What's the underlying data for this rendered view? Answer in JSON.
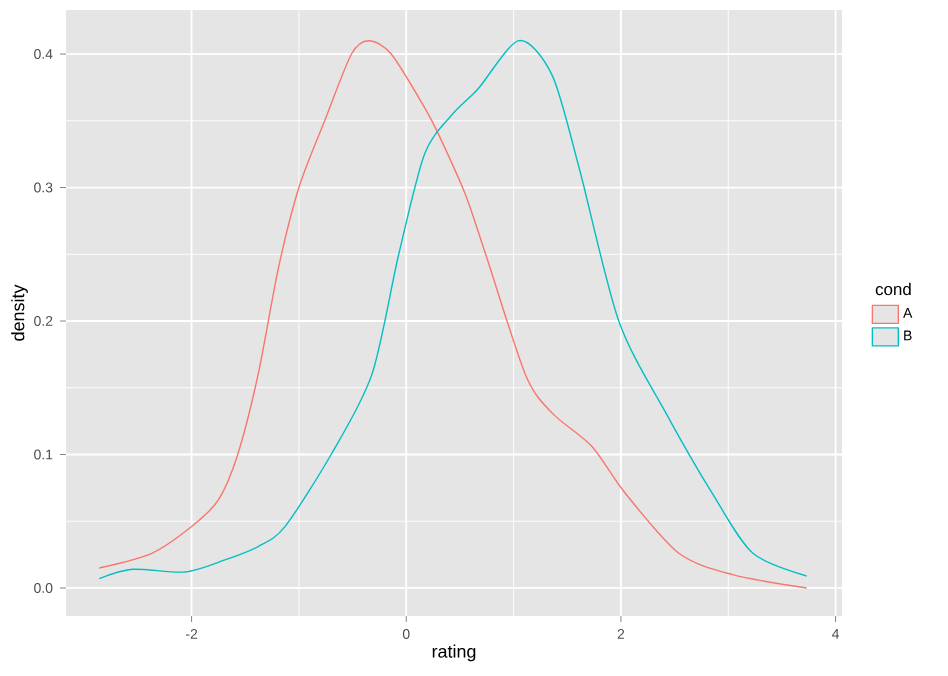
{
  "chart_data": {
    "type": "line",
    "xlabel": "rating",
    "ylabel": "density",
    "legend_title": "cond",
    "series": [
      {
        "name": "A",
        "color": "#f8766d",
        "x": [
          -2.86,
          -2.37,
          -2.0,
          -1.75,
          -1.57,
          -1.38,
          -1.19,
          -1.0,
          -0.76,
          -0.51,
          -0.35,
          -0.14,
          0.17,
          0.3,
          0.55,
          0.74,
          1.11,
          1.36,
          1.73,
          2.04,
          2.54,
          3.04,
          3.73
        ],
        "values": [
          0.015,
          0.026,
          0.046,
          0.066,
          0.1,
          0.16,
          0.24,
          0.3,
          0.35,
          0.4,
          0.41,
          0.4,
          0.36,
          0.34,
          0.295,
          0.25,
          0.16,
          0.131,
          0.106,
          0.071,
          0.026,
          0.01,
          0.0
        ]
      },
      {
        "name": "B",
        "color": "#00bfc4",
        "x": [
          -2.86,
          -2.55,
          -2.06,
          -1.69,
          -1.38,
          -1.13,
          -0.7,
          -0.32,
          -0.07,
          0.17,
          0.42,
          0.67,
          1.05,
          1.36,
          1.61,
          1.98,
          2.42,
          2.85,
          3.23,
          3.73
        ],
        "values": [
          0.007,
          0.014,
          0.012,
          0.021,
          0.031,
          0.046,
          0.1,
          0.16,
          0.25,
          0.325,
          0.354,
          0.374,
          0.41,
          0.384,
          0.315,
          0.2,
          0.131,
          0.071,
          0.026,
          0.009
        ]
      }
    ],
    "xlim": [
      -3.17,
      4.06
    ],
    "ylim": [
      -0.021,
      0.433
    ],
    "xticks": [
      -2,
      0,
      2,
      4
    ],
    "yticks": [
      {
        "value": 0,
        "label": "0.0"
      },
      0.1,
      0.2,
      0.3,
      0.4
    ],
    "grid": true,
    "legend": "right",
    "marker": "none",
    "line_style": "solid"
  }
}
